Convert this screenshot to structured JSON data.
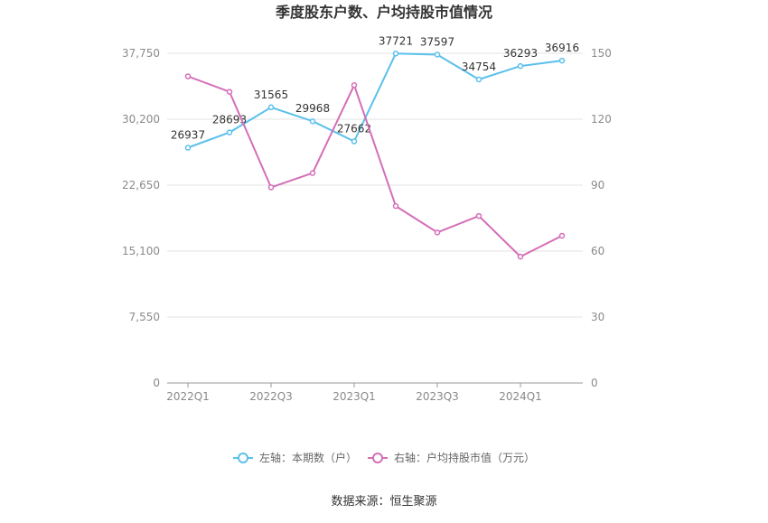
{
  "chart_data": {
    "type": "line",
    "title": "季度股东户数、户均持股市值情况",
    "categories": [
      "2022Q1",
      "2022Q2",
      "2022Q3",
      "2022Q4",
      "2023Q1",
      "2023Q2",
      "2023Q3",
      "2023Q4",
      "2024Q1",
      "2024Q2"
    ],
    "x_tick_labels": [
      "2022Q1",
      "2022Q3",
      "2023Q1",
      "2023Q3",
      "2024Q1"
    ],
    "left_axis": {
      "ticks": [
        0,
        7550,
        15100,
        22650,
        30200,
        37750
      ],
      "tick_labels": [
        "0",
        "7,550",
        "15,100",
        "22,650",
        "30,200",
        "37,750"
      ],
      "ylim": [
        0,
        37750
      ]
    },
    "right_axis": {
      "ticks": [
        0,
        30,
        60,
        90,
        120,
        150
      ],
      "tick_labels": [
        "0",
        "30",
        "60",
        "90",
        "120",
        "150"
      ],
      "ylim": [
        0,
        150
      ]
    },
    "series": [
      {
        "name": "左轴：本期数（户）",
        "axis": "left",
        "color": "#5bc0eb",
        "values": [
          26937,
          28693,
          31565,
          29968,
          27662,
          37721,
          37597,
          34754,
          36293,
          36916
        ],
        "labels": [
          "26937",
          "28693",
          "31565",
          "29968",
          "27662",
          "37721",
          "37597",
          "34754",
          "36293",
          "36916"
        ]
      },
      {
        "name": "右轴：户均持股市值（万元）",
        "axis": "right",
        "color": "#d46eb7",
        "values": [
          139.5,
          132.5,
          89.0,
          95.5,
          135.5,
          80.5,
          68.5,
          76.0,
          57.5,
          67.0
        ]
      }
    ],
    "grid": true,
    "legend_position": "bottom",
    "source": "数据来源：恒生聚源"
  }
}
